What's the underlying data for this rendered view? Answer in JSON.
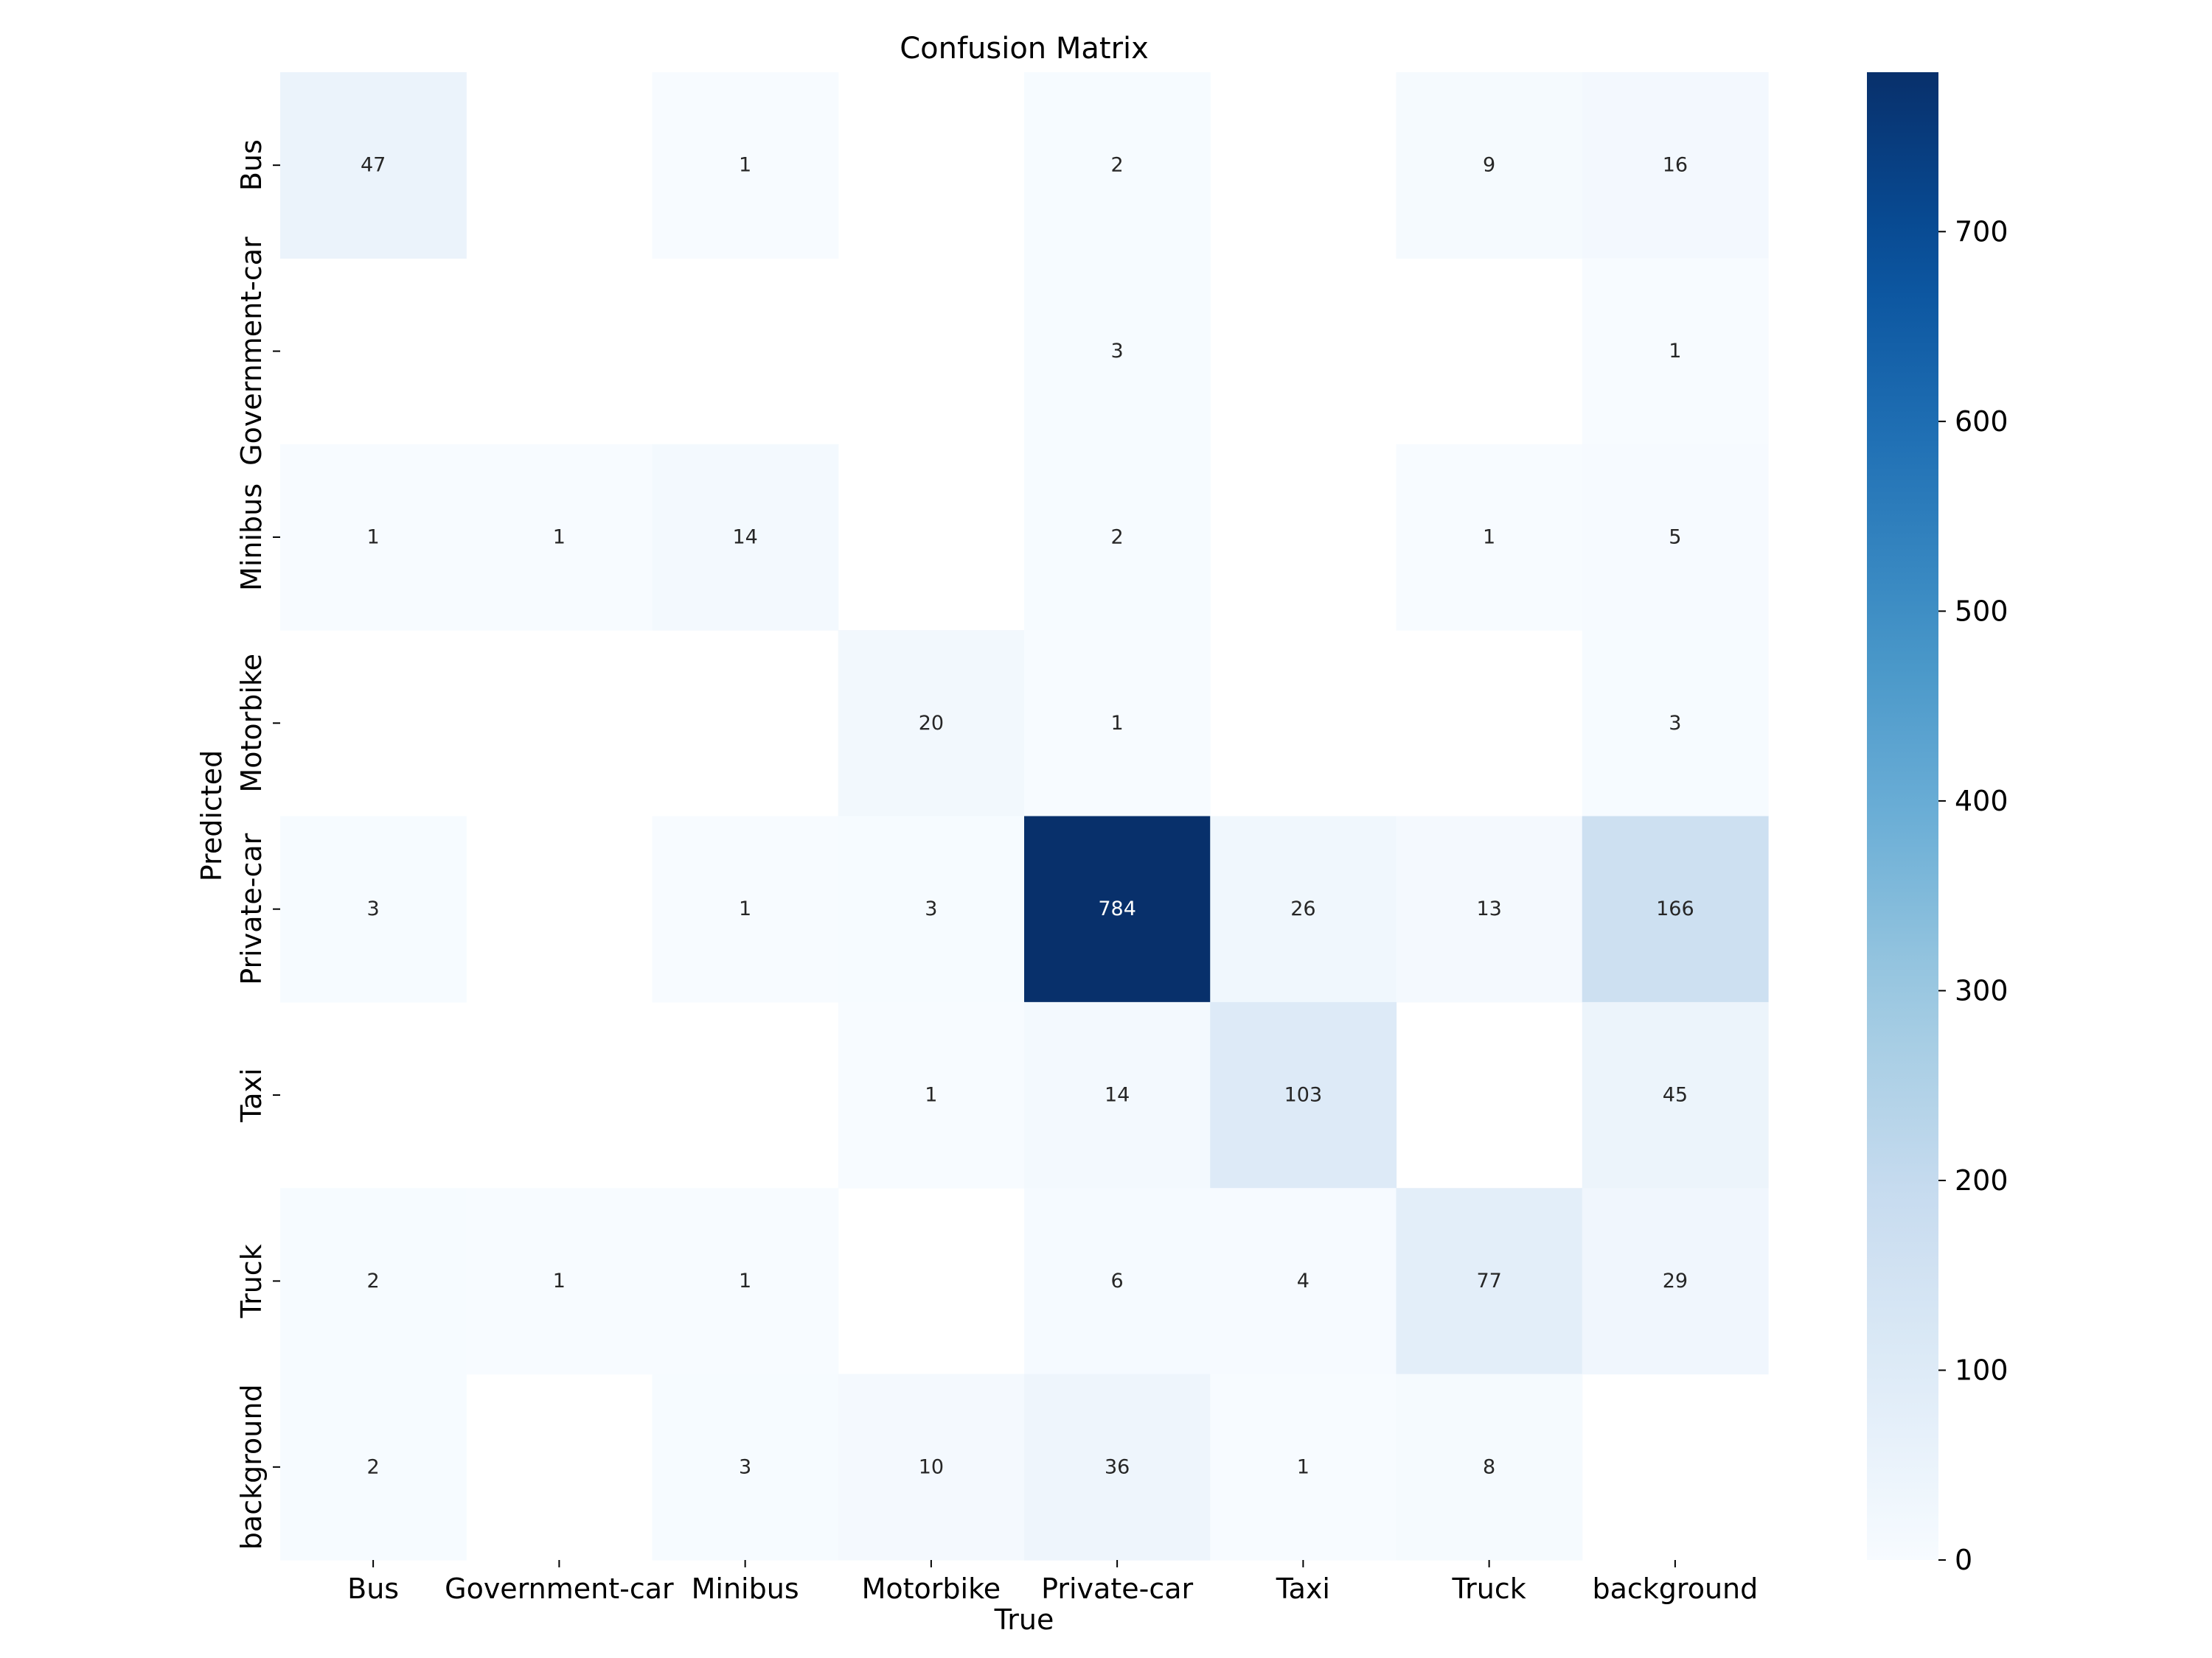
{
  "chart_data": {
    "type": "heatmap",
    "title": "Confusion Matrix",
    "xlabel": "True",
    "ylabel": "Predicted",
    "x_categories": [
      "Bus",
      "Government-car",
      "Minibus",
      "Motorbike",
      "Private-car",
      "Taxi",
      "Truck",
      "background"
    ],
    "y_categories": [
      "Bus",
      "Government-car",
      "Minibus",
      "Motorbike",
      "Private-car",
      "Taxi",
      "Truck",
      "background"
    ],
    "matrix": [
      [
        47,
        null,
        1,
        null,
        2,
        null,
        9,
        16
      ],
      [
        null,
        null,
        null,
        null,
        3,
        null,
        null,
        1
      ],
      [
        1,
        1,
        14,
        null,
        2,
        null,
        1,
        5
      ],
      [
        null,
        null,
        null,
        20,
        1,
        null,
        null,
        3
      ],
      [
        3,
        null,
        1,
        3,
        784,
        26,
        13,
        166
      ],
      [
        null,
        null,
        null,
        1,
        14,
        103,
        null,
        45
      ],
      [
        2,
        1,
        1,
        null,
        6,
        4,
        77,
        29
      ],
      [
        2,
        null,
        3,
        10,
        36,
        1,
        8,
        null
      ]
    ],
    "colormap": "Blues",
    "color_range": [
      0,
      784
    ],
    "colorbar_ticks": [
      0,
      100,
      200,
      300,
      400,
      500,
      600,
      700
    ],
    "colorbar_tick_labels": [
      "0",
      "100",
      "200",
      "300",
      "400",
      "500",
      "600",
      "700"
    ]
  }
}
